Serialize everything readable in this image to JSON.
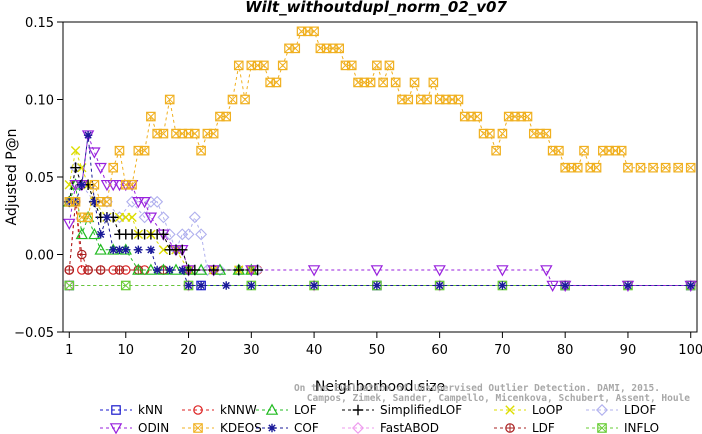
{
  "chart_data": {
    "type": "line",
    "title": "Wilt_withoutdupl_norm_02_v07",
    "xlabel": "Neighborhood size",
    "ylabel": "Adjusted P@n",
    "xlim": [
      0,
      101
    ],
    "ylim": [
      -0.05,
      0.15
    ],
    "xticks": [
      1,
      10,
      20,
      30,
      40,
      50,
      60,
      70,
      80,
      90,
      100
    ],
    "yticks": [
      -0.05,
      0.0,
      0.05,
      0.1,
      0.15
    ],
    "ytick_labels": [
      "−0.05",
      "0.00",
      "0.05",
      "0.10",
      "0.15"
    ],
    "grid": false,
    "legend_position": "bottom",
    "watermark": [
      "Campos, Zimek, Sander, Campello, Micenkova, Schubert, Assent, Houle",
      "On the Evaluation of Unsupervised Outlier Detection. DAMI, 2015."
    ],
    "series": [
      {
        "name": "kNN",
        "color": "#1a1acc",
        "marker": "square",
        "points": [
          [
            1,
            -0.02
          ],
          [
            22,
            -0.02
          ],
          [
            50,
            -0.02
          ],
          [
            80,
            -0.02
          ],
          [
            100,
            -0.02
          ]
        ]
      },
      {
        "name": "kNNW",
        "color": "#dd2222",
        "marker": "circle",
        "points": [
          [
            1,
            -0.01
          ],
          [
            2,
            0.034
          ],
          [
            3,
            -0.01
          ],
          [
            4,
            -0.01
          ],
          [
            6,
            -0.01
          ],
          [
            8,
            -0.01
          ],
          [
            10,
            -0.01
          ],
          [
            13,
            -0.01
          ],
          [
            16,
            -0.01
          ],
          [
            20,
            -0.01
          ],
          [
            24,
            -0.01
          ],
          [
            28,
            -0.01
          ],
          [
            31,
            -0.01
          ]
        ]
      },
      {
        "name": "LOF",
        "color": "#22bb22",
        "marker": "triangle-up",
        "points": [
          [
            1,
            0.034
          ],
          [
            2,
            0.045
          ],
          [
            3,
            0.013
          ],
          [
            4,
            0.024
          ],
          [
            5,
            0.013
          ],
          [
            6,
            0.003
          ],
          [
            8,
            0.003
          ],
          [
            10,
            0.003
          ],
          [
            12,
            -0.01
          ],
          [
            14,
            -0.01
          ],
          [
            16,
            -0.01
          ],
          [
            18,
            -0.01
          ],
          [
            20,
            -0.01
          ],
          [
            22,
            -0.01
          ],
          [
            25,
            -0.01
          ],
          [
            28,
            -0.01
          ],
          [
            30,
            -0.01
          ]
        ]
      },
      {
        "name": "SimplifiedLOF",
        "color": "#000000",
        "marker": "plus",
        "points": [
          [
            1,
            0.034
          ],
          [
            2,
            0.056
          ],
          [
            3,
            0.045
          ],
          [
            4,
            0.045
          ],
          [
            5,
            0.034
          ],
          [
            6,
            0.024
          ],
          [
            7,
            0.024
          ],
          [
            8,
            0.024
          ],
          [
            9,
            0.013
          ],
          [
            10,
            0.013
          ],
          [
            11,
            0.013
          ],
          [
            12,
            0.013
          ],
          [
            13,
            0.013
          ],
          [
            14,
            0.013
          ],
          [
            15,
            0.013
          ],
          [
            16,
            0.013
          ],
          [
            17,
            0.003
          ],
          [
            18,
            0.003
          ],
          [
            19,
            0.003
          ],
          [
            20,
            -0.01
          ],
          [
            21,
            -0.01
          ],
          [
            24,
            -0.01
          ],
          [
            28,
            -0.01
          ],
          [
            31,
            -0.01
          ]
        ]
      },
      {
        "name": "LoOP",
        "color": "#dddd00",
        "marker": "x",
        "points": [
          [
            1,
            0.045
          ],
          [
            2,
            0.067
          ],
          [
            3,
            0.056
          ],
          [
            4,
            0.045
          ],
          [
            5,
            0.034
          ],
          [
            7,
            0.024
          ],
          [
            9,
            0.024
          ],
          [
            10,
            0.024
          ],
          [
            11,
            0.024
          ],
          [
            12,
            0.013
          ],
          [
            14,
            0.013
          ],
          [
            16,
            0.003
          ],
          [
            18,
            0.003
          ],
          [
            20,
            -0.01
          ],
          [
            24,
            -0.01
          ],
          [
            28,
            -0.01
          ],
          [
            30,
            -0.01
          ]
        ]
      },
      {
        "name": "LDOF",
        "color": "#b0b0ee",
        "marker": "diamond",
        "points": [
          [
            1,
            0.034
          ],
          [
            2,
            0.056
          ],
          [
            3,
            0.045
          ],
          [
            5,
            0.034
          ],
          [
            7,
            0.034
          ],
          [
            9,
            0.024
          ],
          [
            11,
            0.034
          ],
          [
            13,
            0.024
          ],
          [
            14,
            0.034
          ],
          [
            15,
            0.034
          ],
          [
            16,
            0.024
          ],
          [
            17,
            0.013
          ],
          [
            18,
            0.003
          ],
          [
            19,
            0.013
          ],
          [
            20,
            0.013
          ],
          [
            21,
            0.024
          ],
          [
            22,
            0.013
          ],
          [
            23,
            -0.01
          ],
          [
            25,
            -0.01
          ],
          [
            28,
            -0.01
          ],
          [
            31,
            -0.01
          ]
        ]
      },
      {
        "name": "ODIN",
        "color": "#9922dd",
        "marker": "triangle-down",
        "points": [
          [
            1,
            0.02
          ],
          [
            2,
            0.045
          ],
          [
            3,
            0.045
          ],
          [
            4,
            0.077
          ],
          [
            5,
            0.066
          ],
          [
            6,
            0.056
          ],
          [
            7,
            0.045
          ],
          [
            8,
            0.045
          ],
          [
            9,
            0.045
          ],
          [
            10,
            0.045
          ],
          [
            11,
            0.045
          ],
          [
            12,
            0.034
          ],
          [
            13,
            0.034
          ],
          [
            14,
            0.024
          ],
          [
            16,
            0.013
          ],
          [
            18,
            0.003
          ],
          [
            19,
            0.003
          ],
          [
            20,
            -0.01
          ],
          [
            24,
            -0.01
          ],
          [
            30,
            -0.01
          ],
          [
            40,
            -0.01
          ],
          [
            50,
            -0.01
          ],
          [
            60,
            -0.01
          ],
          [
            70,
            -0.01
          ],
          [
            77,
            -0.01
          ],
          [
            78,
            -0.02
          ],
          [
            80,
            -0.02
          ],
          [
            90,
            -0.02
          ],
          [
            100,
            -0.02
          ]
        ]
      },
      {
        "name": "KDEOS",
        "color": "#f0b020",
        "marker": "square-x",
        "points": [
          [
            1,
            0.034
          ],
          [
            2,
            0.034
          ],
          [
            3,
            0.024
          ],
          [
            4,
            0.024
          ],
          [
            5,
            0.045
          ],
          [
            6,
            0.034
          ],
          [
            7,
            0.034
          ],
          [
            8,
            0.056
          ],
          [
            9,
            0.067
          ],
          [
            10,
            0.045
          ],
          [
            11,
            0.045
          ],
          [
            12,
            0.067
          ],
          [
            13,
            0.067
          ],
          [
            14,
            0.089
          ],
          [
            15,
            0.078
          ],
          [
            16,
            0.078
          ],
          [
            17,
            0.1
          ],
          [
            18,
            0.078
          ],
          [
            19,
            0.078
          ],
          [
            20,
            0.078
          ],
          [
            21,
            0.078
          ],
          [
            22,
            0.067
          ],
          [
            23,
            0.078
          ],
          [
            24,
            0.078
          ],
          [
            25,
            0.089
          ],
          [
            26,
            0.089
          ],
          [
            27,
            0.1
          ],
          [
            28,
            0.122
          ],
          [
            29,
            0.1
          ],
          [
            30,
            0.122
          ],
          [
            31,
            0.122
          ],
          [
            32,
            0.122
          ],
          [
            33,
            0.111
          ],
          [
            34,
            0.111
          ],
          [
            35,
            0.122
          ],
          [
            36,
            0.133
          ],
          [
            37,
            0.133
          ],
          [
            38,
            0.144
          ],
          [
            39,
            0.144
          ],
          [
            40,
            0.144
          ],
          [
            41,
            0.133
          ],
          [
            42,
            0.133
          ],
          [
            43,
            0.133
          ],
          [
            44,
            0.133
          ],
          [
            45,
            0.122
          ],
          [
            46,
            0.122
          ],
          [
            47,
            0.111
          ],
          [
            48,
            0.111
          ],
          [
            49,
            0.111
          ],
          [
            50,
            0.122
          ],
          [
            51,
            0.111
          ],
          [
            52,
            0.122
          ],
          [
            53,
            0.111
          ],
          [
            54,
            0.1
          ],
          [
            55,
            0.1
          ],
          [
            56,
            0.111
          ],
          [
            57,
            0.1
          ],
          [
            58,
            0.1
          ],
          [
            59,
            0.111
          ],
          [
            60,
            0.1
          ],
          [
            61,
            0.1
          ],
          [
            62,
            0.1
          ],
          [
            63,
            0.1
          ],
          [
            64,
            0.089
          ],
          [
            65,
            0.089
          ],
          [
            66,
            0.089
          ],
          [
            67,
            0.078
          ],
          [
            68,
            0.078
          ],
          [
            69,
            0.067
          ],
          [
            70,
            0.078
          ],
          [
            71,
            0.089
          ],
          [
            72,
            0.089
          ],
          [
            73,
            0.089
          ],
          [
            74,
            0.089
          ],
          [
            75,
            0.078
          ],
          [
            76,
            0.078
          ],
          [
            77,
            0.078
          ],
          [
            78,
            0.067
          ],
          [
            79,
            0.067
          ],
          [
            80,
            0.056
          ],
          [
            81,
            0.056
          ],
          [
            82,
            0.056
          ],
          [
            83,
            0.067
          ],
          [
            84,
            0.056
          ],
          [
            85,
            0.056
          ],
          [
            86,
            0.067
          ],
          [
            87,
            0.067
          ],
          [
            88,
            0.067
          ],
          [
            89,
            0.067
          ],
          [
            90,
            0.056
          ],
          [
            92,
            0.056
          ],
          [
            94,
            0.056
          ],
          [
            96,
            0.056
          ],
          [
            98,
            0.056
          ],
          [
            100,
            0.056
          ]
        ]
      },
      {
        "name": "COF",
        "color": "#1a1a99",
        "marker": "asterisk",
        "points": [
          [
            1,
            0.034
          ],
          [
            2,
            0.034
          ],
          [
            3,
            0.045
          ],
          [
            4,
            0.077
          ],
          [
            5,
            0.034
          ],
          [
            6,
            0.013
          ],
          [
            7,
            0.024
          ],
          [
            8,
            0.003
          ],
          [
            9,
            0.003
          ],
          [
            10,
            0.003
          ],
          [
            12,
            0.003
          ],
          [
            14,
            0.003
          ],
          [
            15,
            -0.01
          ],
          [
            17,
            -0.01
          ],
          [
            19,
            -0.01
          ],
          [
            20,
            -0.02
          ],
          [
            22,
            -0.02
          ],
          [
            26,
            -0.02
          ],
          [
            30,
            -0.02
          ],
          [
            40,
            -0.02
          ],
          [
            50,
            -0.02
          ],
          [
            60,
            -0.02
          ],
          [
            70,
            -0.02
          ],
          [
            80,
            -0.02
          ],
          [
            90,
            -0.02
          ],
          [
            100,
            -0.02
          ]
        ]
      },
      {
        "name": "FastABOD",
        "color": "#ee99ee",
        "marker": "diamond",
        "points": [
          [
            1,
            -0.02
          ],
          [
            20,
            -0.02
          ],
          [
            40,
            -0.02
          ],
          [
            60,
            -0.02
          ],
          [
            80,
            -0.02
          ],
          [
            100,
            -0.02
          ]
        ]
      },
      {
        "name": "LDF",
        "color": "#aa2222",
        "marker": "circle-plus",
        "points": [
          [
            1,
            -0.01
          ],
          [
            2,
            0.034
          ],
          [
            3,
            0.0
          ],
          [
            4,
            -0.01
          ],
          [
            6,
            -0.01
          ],
          [
            9,
            -0.01
          ],
          [
            12,
            -0.01
          ],
          [
            16,
            -0.01
          ],
          [
            20,
            -0.01
          ],
          [
            24,
            -0.01
          ],
          [
            28,
            -0.01
          ],
          [
            30,
            -0.01
          ]
        ]
      },
      {
        "name": "INFLO",
        "color": "#66cc33",
        "marker": "square-x",
        "points": [
          [
            1,
            -0.02
          ],
          [
            10,
            -0.02
          ],
          [
            20,
            -0.02
          ],
          [
            30,
            -0.02
          ],
          [
            40,
            -0.02
          ],
          [
            50,
            -0.02
          ],
          [
            60,
            -0.02
          ],
          [
            70,
            -0.02
          ],
          [
            80,
            -0.02
          ],
          [
            90,
            -0.02
          ],
          [
            100,
            -0.02
          ]
        ]
      }
    ]
  }
}
